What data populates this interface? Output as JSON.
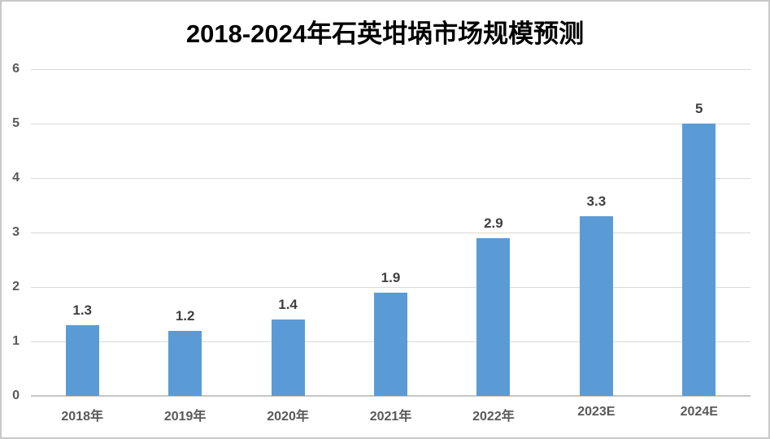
{
  "page": {
    "background": "#ffffff",
    "border_color": "#c9c9c9"
  },
  "chart_data": {
    "type": "bar",
    "title": "2018-2024年石英坩埚市场规模预测",
    "categories": [
      "2018年",
      "2019年",
      "2020年",
      "2021年",
      "2022年",
      "2023E",
      "2024E"
    ],
    "values": [
      1.3,
      1.2,
      1.4,
      1.9,
      2.9,
      3.3,
      5
    ],
    "value_labels": [
      "1.3",
      "1.2",
      "1.4",
      "1.9",
      "2.9",
      "3.3",
      "5"
    ],
    "xlabel": "",
    "ylabel": "",
    "ylim": [
      0,
      6
    ],
    "yticks": [
      "0",
      "1",
      "2",
      "3",
      "4",
      "5",
      "6"
    ],
    "grid": true,
    "legend": false,
    "bar_color": "#5b9bd5",
    "gridline_color": "#d9d9d9",
    "baseline_color": "#c6c6c6",
    "axis_text_color": "#595959",
    "value_label_color": "#404040",
    "title_color": "#000000"
  }
}
